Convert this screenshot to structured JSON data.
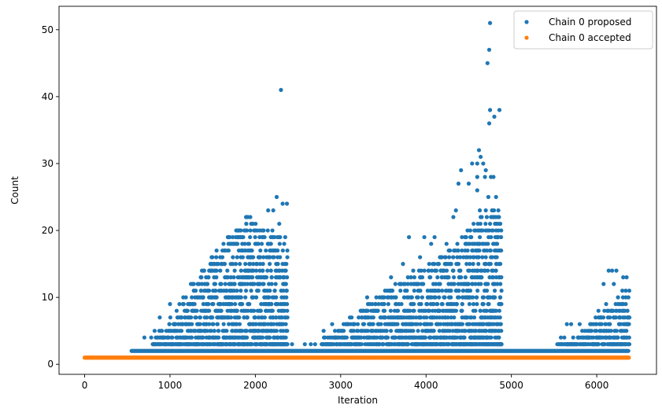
{
  "chart_data": {
    "type": "scatter",
    "xlabel": "Iteration",
    "ylabel": "Count",
    "xlim": [
      -300,
      6700
    ],
    "ylim": [
      -1.5,
      53.5
    ],
    "x_ticks": [
      0,
      1000,
      2000,
      3000,
      4000,
      5000,
      6000
    ],
    "y_ticks": [
      0,
      10,
      20,
      30,
      40,
      50
    ],
    "x_tick_labels": [
      "0",
      "1000",
      "2000",
      "3000",
      "4000",
      "5000",
      "6000"
    ],
    "y_tick_labels": [
      "0",
      "10",
      "20",
      "30",
      "40",
      "50"
    ],
    "grid": false,
    "legend_position": "top-right",
    "legend": [
      "Chain 0 proposed",
      "Chain 0 accepted"
    ],
    "series": [
      {
        "name": "Chain 0 proposed",
        "color": "#1f77b4",
        "marker": "dot",
        "baseline_y": 2,
        "baseline_x_range": [
          550,
          6380
        ],
        "points": [
          [
            2300,
            41
          ],
          [
            4750,
            51
          ],
          [
            4740,
            47
          ],
          [
            4720,
            45
          ],
          [
            4750,
            38
          ],
          [
            4860,
            38
          ],
          [
            4800,
            37
          ],
          [
            4740,
            36
          ],
          [
            4620,
            32
          ],
          [
            4640,
            31
          ],
          [
            4540,
            30
          ],
          [
            4600,
            30
          ],
          [
            4670,
            30
          ],
          [
            4700,
            29
          ],
          [
            4410,
            29
          ],
          [
            4600,
            28
          ],
          [
            4690,
            28
          ],
          [
            4760,
            28
          ],
          [
            4790,
            28
          ],
          [
            4500,
            27
          ],
          [
            4380,
            27
          ],
          [
            2250,
            25
          ],
          [
            4600,
            26
          ],
          [
            4730,
            25
          ],
          [
            4820,
            25
          ],
          [
            2320,
            24
          ],
          [
            2370,
            24
          ],
          [
            4350,
            23
          ],
          [
            4630,
            23
          ],
          [
            4700,
            23
          ],
          [
            2150,
            23
          ],
          [
            2210,
            23
          ],
          [
            4320,
            22
          ],
          [
            4640,
            22
          ],
          [
            2000,
            20
          ],
          [
            2200,
            20
          ],
          [
            2280,
            21
          ],
          [
            4860,
            21
          ],
          [
            3800,
            19
          ],
          [
            3980,
            19
          ],
          [
            4100,
            19
          ],
          [
            4720,
            20
          ],
          [
            1790,
            18
          ],
          [
            2260,
            19
          ],
          [
            2350,
            19
          ],
          [
            4240,
            18
          ],
          [
            4480,
            18
          ],
          [
            4820,
            18
          ],
          [
            1960,
            17
          ],
          [
            2180,
            18
          ],
          [
            4060,
            18
          ],
          [
            4540,
            17
          ],
          [
            4880,
            17
          ],
          [
            1600,
            15
          ],
          [
            1950,
            16
          ],
          [
            2050,
            16
          ],
          [
            3730,
            15
          ],
          [
            3930,
            16
          ],
          [
            4170,
            16
          ],
          [
            4400,
            16
          ],
          [
            4700,
            16
          ],
          [
            6140,
            14
          ],
          [
            6180,
            14
          ],
          [
            6230,
            14
          ],
          [
            1480,
            14
          ],
          [
            1890,
            14
          ],
          [
            2090,
            15
          ],
          [
            2320,
            15
          ],
          [
            3850,
            14
          ],
          [
            4210,
            14
          ],
          [
            4380,
            15
          ],
          [
            4600,
            14
          ],
          [
            6310,
            13
          ],
          [
            6350,
            13
          ],
          [
            6080,
            12
          ],
          [
            6200,
            12
          ],
          [
            6300,
            11
          ],
          [
            6340,
            11
          ],
          [
            1420,
            11
          ],
          [
            1820,
            12
          ],
          [
            2130,
            13
          ],
          [
            3590,
            13
          ],
          [
            3710,
            12
          ],
          [
            3900,
            12
          ],
          [
            4050,
            13
          ],
          [
            4650,
            13
          ],
          [
            1000,
            9
          ],
          [
            1160,
            9
          ],
          [
            1320,
            10
          ],
          [
            3310,
            10
          ],
          [
            3410,
            9
          ],
          [
            3590,
            10
          ],
          [
            6110,
            9
          ],
          [
            6250,
            9
          ],
          [
            6020,
            8
          ],
          [
            6180,
            8
          ],
          [
            6360,
            8
          ],
          [
            880,
            7
          ],
          [
            1200,
            8
          ],
          [
            3380,
            8
          ],
          [
            3510,
            8
          ],
          [
            5650,
            6
          ],
          [
            5700,
            6
          ],
          [
            5800,
            6
          ],
          [
            5830,
            5
          ],
          [
            5980,
            5
          ],
          [
            6050,
            7
          ],
          [
            2800,
            5
          ],
          [
            2900,
            6
          ],
          [
            820,
            5
          ],
          [
            1050,
            6
          ],
          [
            3150,
            6
          ],
          [
            3250,
            7
          ],
          [
            5580,
            4
          ],
          [
            5620,
            4
          ],
          [
            5850,
            4
          ],
          [
            5960,
            4
          ],
          [
            6100,
            6
          ],
          [
            6280,
            6
          ],
          [
            6330,
            7
          ],
          [
            700,
            4
          ],
          [
            780,
            4
          ],
          [
            2430,
            3
          ],
          [
            2580,
            3
          ],
          [
            2650,
            3
          ],
          [
            2700,
            3
          ],
          [
            5660,
            3
          ],
          [
            5720,
            3
          ],
          [
            5900,
            3
          ],
          [
            6000,
            3
          ],
          [
            6150,
            4
          ],
          [
            6210,
            5
          ],
          [
            6280,
            5
          ],
          [
            6380,
            4
          ],
          [
            3020,
            4
          ],
          [
            3120,
            5
          ],
          [
            3450,
            6
          ],
          [
            3560,
            7
          ]
        ],
        "bands": [
          {
            "x": [
              800,
              2380
            ],
            "ymax": [
              3,
              13,
              22,
              18
            ]
          },
          {
            "x": [
              2780,
              4880
            ],
            "ymax": [
              3,
              10,
              16,
              24
            ]
          },
          {
            "x": [
              5540,
              6380
            ],
            "ymax": [
              2,
              4,
              8,
              11
            ]
          }
        ]
      },
      {
        "name": "Chain 0 accepted",
        "color": "#ff7f0e",
        "marker": "dot",
        "baseline_y": 1,
        "baseline_x_range": [
          0,
          6380
        ]
      }
    ]
  }
}
